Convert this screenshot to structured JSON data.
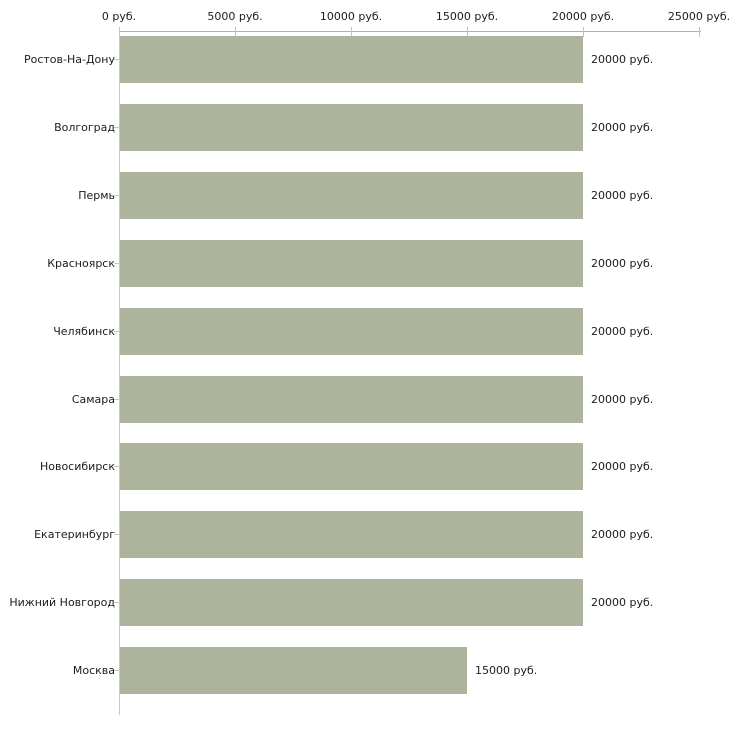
{
  "chart_data": {
    "type": "bar",
    "orientation": "horizontal",
    "title": "",
    "xlabel": "",
    "ylabel": "",
    "unit": "руб.",
    "categories": [
      "Ростов-На-Дону",
      "Волгоград",
      "Пермь",
      "Красноярск",
      "Челябинск",
      "Самара",
      "Новосибирск",
      "Екатеринбург",
      "Нижний Новгород",
      "Москва"
    ],
    "values": [
      20000,
      20000,
      20000,
      20000,
      20000,
      20000,
      20000,
      20000,
      20000,
      15000
    ],
    "value_labels": [
      "20000 руб.",
      "20000 руб.",
      "20000 руб.",
      "20000 руб.",
      "20000 руб.",
      "20000 руб.",
      "20000 руб.",
      "20000 руб.",
      "20000 руб.",
      "15000 руб."
    ],
    "xlim": [
      0,
      25000
    ],
    "x_ticks": [
      {
        "value": 0,
        "label": "0 руб."
      },
      {
        "value": 5000,
        "label": "5000 руб."
      },
      {
        "value": 10000,
        "label": "10000 руб."
      },
      {
        "value": 15000,
        "label": "15000 руб."
      },
      {
        "value": 20000,
        "label": "20000 руб."
      },
      {
        "value": 25000,
        "label": "25000 руб."
      }
    ],
    "grid": false,
    "legend": null,
    "axis_position": "top",
    "colors": {
      "bar": "#acb49c",
      "x_axis_line": "#b2b2b2",
      "y_axis_line": "#c9c9c9",
      "tick_mark": "#c6c6a8",
      "category_tick": "#ccccb4",
      "text": "#1c1c1c",
      "background": "#ffffff"
    }
  }
}
